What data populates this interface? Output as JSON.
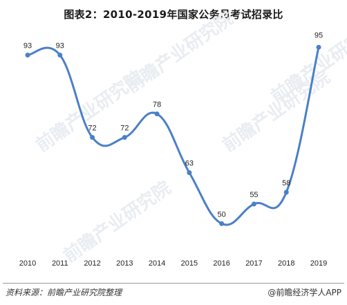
{
  "chart_data": {
    "type": "line",
    "title": "图表2：2010-2019年国家公务员考试招录比",
    "xlabel": "",
    "ylabel": "",
    "categories": [
      "2010",
      "2011",
      "2012",
      "2013",
      "2014",
      "2015",
      "2016",
      "2017",
      "2018",
      "2019"
    ],
    "values": [
      93,
      93,
      72,
      72,
      78,
      63,
      50,
      55,
      58,
      95
    ],
    "ylim": [
      40,
      100
    ],
    "grid": false,
    "legend": "none",
    "line_style": "smooth",
    "show_data_labels": true,
    "colors": {
      "line": "#4a7fc8",
      "marker": "#4a7fc8"
    }
  },
  "watermark": {
    "text": "前瞻产业研究院"
  },
  "footer": {
    "source": "资料来源：前瞻产业研究院整理",
    "credit": "@前瞻经济学人APP"
  }
}
